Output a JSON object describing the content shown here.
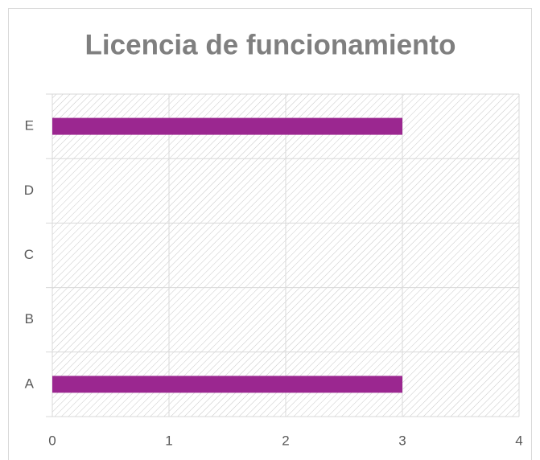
{
  "chart_data": {
    "type": "bar",
    "orientation": "horizontal",
    "title": "Licencia de funcionamiento",
    "categories": [
      "A",
      "B",
      "C",
      "D",
      "E"
    ],
    "values": [
      3,
      0,
      0,
      0,
      3
    ],
    "color": "#9b2790",
    "xlim": [
      0,
      4
    ],
    "xticks": [
      0,
      1,
      2,
      3,
      4
    ],
    "grid": true
  }
}
